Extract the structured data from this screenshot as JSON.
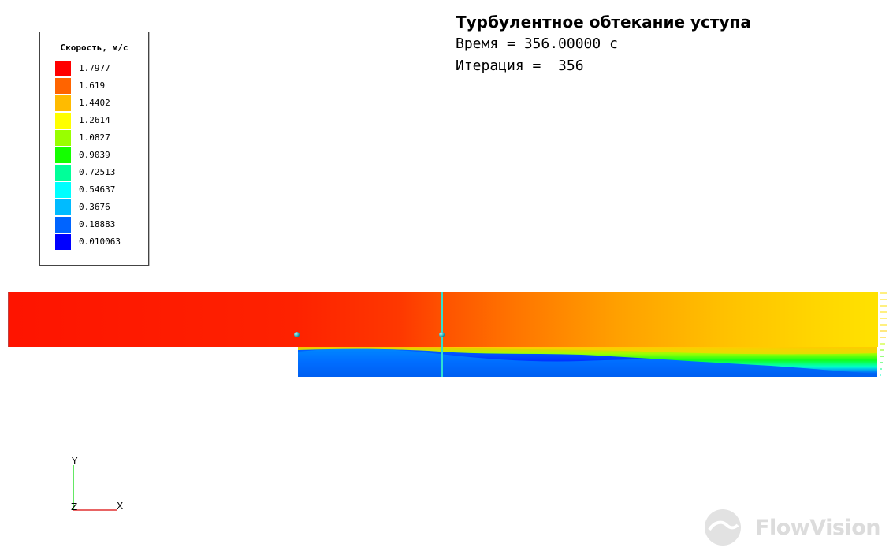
{
  "legend": {
    "title": "Скорость, м/с",
    "items": [
      {
        "label": "1.7977",
        "color": "#ff0000"
      },
      {
        "label": "1.619",
        "color": "#ff6400"
      },
      {
        "label": "1.4402",
        "color": "#ffbb00"
      },
      {
        "label": "1.2614",
        "color": "#ffff00"
      },
      {
        "label": "1.0827",
        "color": "#99ff00"
      },
      {
        "label": "0.9039",
        "color": "#14ff00"
      },
      {
        "label": "0.72513",
        "color": "#00ff99"
      },
      {
        "label": "0.54637",
        "color": "#00ffff"
      },
      {
        "label": "0.3676",
        "color": "#00bbff"
      },
      {
        "label": "0.18883",
        "color": "#0064ff"
      },
      {
        "label": "0.010063",
        "color": "#0000ff"
      }
    ]
  },
  "info": {
    "title": "Турбулентное обтекание уступа",
    "time_line": "Время = 356.00000 с",
    "iteration_line": "Итерация =  356"
  },
  "axes": {
    "y": "Y",
    "z": "Z",
    "x": "X"
  },
  "brand": {
    "name": "FlowVision"
  }
}
